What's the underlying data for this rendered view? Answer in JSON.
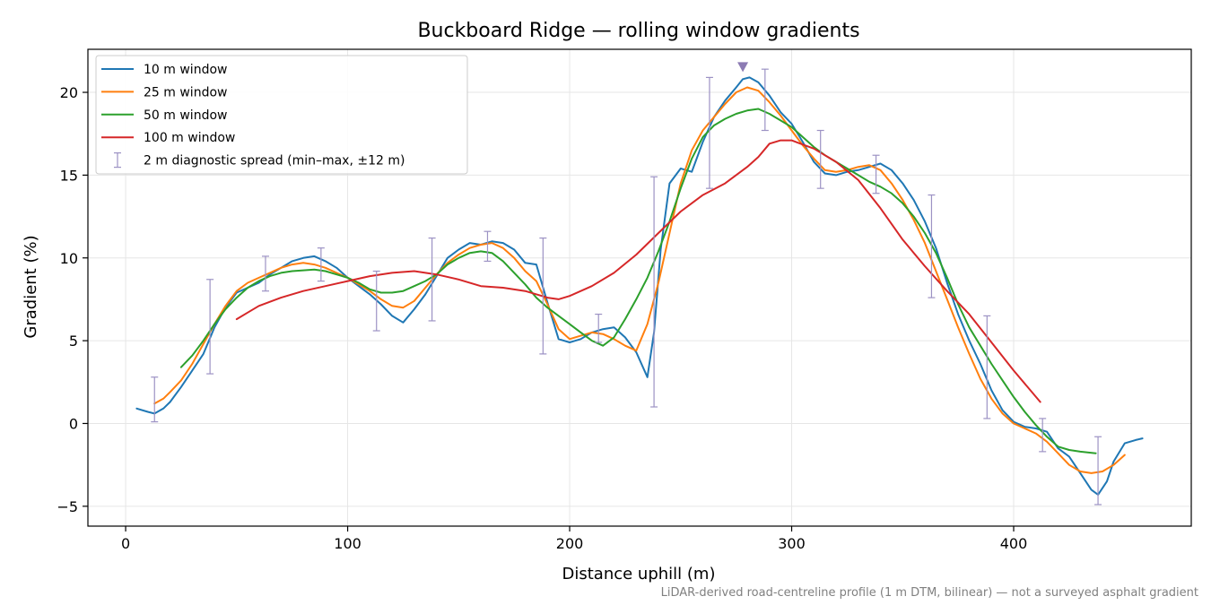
{
  "chart_data": {
    "type": "line",
    "title": "Buckboard Ridge — rolling window gradients",
    "xlabel": "Distance uphill (m)",
    "ylabel": "Gradient (%)",
    "footnote": "LiDAR-derived road-centreline profile (1 m DTM, bilinear) — not a surveyed asphalt gradient",
    "xlim": [
      -17,
      480
    ],
    "ylim": [
      -6.2,
      22.6
    ],
    "xticks": [
      0,
      100,
      200,
      300,
      400
    ],
    "yticks": [
      -5,
      0,
      5,
      10,
      15,
      20
    ],
    "grid": true,
    "legend_position": "top-left",
    "series": [
      {
        "name": "10 m window",
        "color": "#1f77b4",
        "x": [
          5,
          10,
          13,
          17,
          20,
          25,
          30,
          35,
          40,
          45,
          50,
          55,
          60,
          65,
          70,
          75,
          80,
          85,
          90,
          95,
          100,
          105,
          110,
          115,
          120,
          125,
          130,
          135,
          140,
          145,
          150,
          155,
          160,
          165,
          170,
          175,
          180,
          185,
          190,
          195,
          200,
          205,
          210,
          215,
          220,
          225,
          230,
          235,
          238,
          241,
          245,
          250,
          255,
          260,
          265,
          270,
          275,
          278,
          281,
          285,
          290,
          295,
          300,
          305,
          310,
          315,
          320,
          325,
          330,
          335,
          340,
          345,
          350,
          355,
          360,
          365,
          370,
          375,
          380,
          385,
          390,
          395,
          400,
          405,
          410,
          415,
          420,
          425,
          430,
          435,
          438,
          442,
          445,
          450,
          455,
          458
        ],
        "y": [
          0.9,
          0.7,
          0.6,
          0.9,
          1.3,
          2.2,
          3.2,
          4.2,
          5.8,
          7.0,
          7.9,
          8.2,
          8.5,
          9.0,
          9.4,
          9.8,
          10.0,
          10.1,
          9.8,
          9.4,
          8.8,
          8.3,
          7.8,
          7.2,
          6.5,
          6.1,
          6.9,
          7.8,
          8.9,
          10.0,
          10.5,
          10.9,
          10.8,
          11.0,
          10.9,
          10.5,
          9.7,
          9.6,
          7.3,
          5.1,
          4.9,
          5.1,
          5.5,
          5.7,
          5.8,
          5.2,
          4.3,
          2.8,
          5.5,
          10.5,
          14.5,
          15.4,
          15.2,
          17.0,
          18.5,
          19.5,
          20.3,
          20.8,
          20.9,
          20.6,
          19.8,
          18.8,
          18.1,
          17.0,
          15.8,
          15.1,
          15.0,
          15.2,
          15.3,
          15.5,
          15.7,
          15.3,
          14.5,
          13.5,
          12.2,
          10.6,
          8.5,
          6.6,
          5.0,
          3.6,
          2.0,
          0.8,
          0.1,
          -0.2,
          -0.3,
          -0.5,
          -1.5,
          -2.0,
          -3.0,
          -4.0,
          -4.3,
          -3.5,
          -2.3,
          -1.2,
          -1.0,
          -0.9
        ]
      },
      {
        "name": "25 m window",
        "color": "#ff7f0e",
        "x": [
          13,
          17,
          20,
          25,
          30,
          35,
          40,
          45,
          50,
          55,
          60,
          65,
          70,
          75,
          80,
          85,
          90,
          95,
          100,
          105,
          110,
          115,
          120,
          125,
          130,
          135,
          140,
          145,
          150,
          155,
          160,
          165,
          170,
          175,
          180,
          185,
          190,
          195,
          200,
          205,
          210,
          215,
          220,
          225,
          230,
          235,
          240,
          245,
          250,
          255,
          260,
          265,
          270,
          275,
          280,
          285,
          290,
          295,
          300,
          305,
          310,
          315,
          320,
          325,
          330,
          335,
          340,
          345,
          350,
          355,
          360,
          365,
          370,
          375,
          380,
          385,
          390,
          395,
          400,
          405,
          410,
          415,
          420,
          425,
          430,
          435,
          440,
          445,
          450
        ],
        "y": [
          1.2,
          1.5,
          1.9,
          2.6,
          3.6,
          4.8,
          6.0,
          7.1,
          8.0,
          8.5,
          8.8,
          9.1,
          9.4,
          9.6,
          9.7,
          9.6,
          9.4,
          9.1,
          8.8,
          8.4,
          8.0,
          7.5,
          7.1,
          7.0,
          7.4,
          8.2,
          9.0,
          9.7,
          10.2,
          10.6,
          10.8,
          10.9,
          10.6,
          10.0,
          9.2,
          8.6,
          7.2,
          5.7,
          5.1,
          5.3,
          5.5,
          5.4,
          5.1,
          4.7,
          4.4,
          6.0,
          8.5,
          11.5,
          14.5,
          16.5,
          17.7,
          18.5,
          19.3,
          20.0,
          20.3,
          20.1,
          19.4,
          18.6,
          17.7,
          16.8,
          16.0,
          15.3,
          15.2,
          15.3,
          15.5,
          15.6,
          15.3,
          14.5,
          13.5,
          12.3,
          10.9,
          9.2,
          7.5,
          5.8,
          4.2,
          2.7,
          1.5,
          0.6,
          0.0,
          -0.3,
          -0.6,
          -1.1,
          -1.8,
          -2.5,
          -2.9,
          -3.0,
          -2.9,
          -2.5,
          -1.9
        ]
      },
      {
        "name": "50 m window",
        "color": "#2ca02c",
        "x": [
          25,
          30,
          35,
          40,
          45,
          50,
          55,
          60,
          65,
          70,
          75,
          80,
          85,
          90,
          95,
          100,
          105,
          110,
          115,
          120,
          125,
          130,
          135,
          140,
          145,
          150,
          155,
          160,
          165,
          170,
          175,
          180,
          185,
          190,
          195,
          200,
          205,
          210,
          215,
          220,
          225,
          230,
          235,
          240,
          245,
          250,
          255,
          260,
          265,
          270,
          275,
          280,
          285,
          290,
          295,
          300,
          305,
          310,
          315,
          320,
          325,
          330,
          335,
          340,
          345,
          350,
          355,
          360,
          365,
          370,
          375,
          380,
          385,
          390,
          395,
          400,
          405,
          410,
          415,
          420,
          425,
          430,
          437
        ],
        "y": [
          3.4,
          4.1,
          5.0,
          6.0,
          6.9,
          7.6,
          8.2,
          8.6,
          8.9,
          9.1,
          9.2,
          9.25,
          9.3,
          9.2,
          9.0,
          8.8,
          8.5,
          8.1,
          7.9,
          7.9,
          8.0,
          8.3,
          8.6,
          9.0,
          9.6,
          10.0,
          10.3,
          10.4,
          10.3,
          9.8,
          9.1,
          8.4,
          7.6,
          7.0,
          6.5,
          6.0,
          5.5,
          5.0,
          4.7,
          5.2,
          6.3,
          7.5,
          8.8,
          10.4,
          12.2,
          14.2,
          16.0,
          17.3,
          18.0,
          18.4,
          18.7,
          18.9,
          19.0,
          18.7,
          18.3,
          17.9,
          17.3,
          16.7,
          16.2,
          15.8,
          15.4,
          15.0,
          14.6,
          14.3,
          13.9,
          13.3,
          12.5,
          11.5,
          10.3,
          8.8,
          7.2,
          5.8,
          4.7,
          3.6,
          2.6,
          1.6,
          0.7,
          -0.1,
          -0.8,
          -1.4,
          -1.6,
          -1.7,
          -1.8
        ]
      },
      {
        "name": "100 m window",
        "color": "#d62728",
        "x": [
          50,
          55,
          60,
          70,
          80,
          90,
          100,
          110,
          120,
          130,
          140,
          150,
          160,
          170,
          180,
          190,
          195,
          200,
          210,
          220,
          230,
          240,
          250,
          260,
          270,
          280,
          285,
          290,
          295,
          300,
          310,
          320,
          330,
          340,
          350,
          360,
          370,
          380,
          390,
          400,
          412
        ],
        "y": [
          6.3,
          6.7,
          7.1,
          7.6,
          8.0,
          8.3,
          8.6,
          8.9,
          9.1,
          9.2,
          9.0,
          8.7,
          8.3,
          8.2,
          8.0,
          7.6,
          7.5,
          7.7,
          8.3,
          9.1,
          10.2,
          11.5,
          12.8,
          13.8,
          14.5,
          15.5,
          16.1,
          16.9,
          17.1,
          17.1,
          16.6,
          15.8,
          14.7,
          13.0,
          11.1,
          9.5,
          8.0,
          6.6,
          4.9,
          3.2,
          1.3
        ]
      }
    ],
    "errorbars": {
      "name": "2 m diagnostic spread (min–max, ±12 m)",
      "color": "#9c92c4",
      "x": [
        13,
        38,
        63,
        88,
        113,
        138,
        163,
        188,
        213,
        238,
        263,
        288,
        313,
        338,
        363,
        388,
        413,
        438
      ],
      "low": [
        0.1,
        3.0,
        8.0,
        8.6,
        5.6,
        6.2,
        9.8,
        4.2,
        4.9,
        1.0,
        14.2,
        17.7,
        14.2,
        13.9,
        7.6,
        0.3,
        -1.7,
        -4.9
      ],
      "high": [
        2.8,
        8.7,
        10.1,
        10.6,
        9.2,
        11.2,
        11.6,
        11.2,
        6.6,
        14.9,
        20.9,
        21.4,
        17.7,
        16.2,
        13.8,
        6.5,
        0.3,
        -0.8
      ]
    },
    "peak_marker": {
      "x": 278,
      "y": 21.5,
      "color": "#8c7bb3"
    }
  }
}
